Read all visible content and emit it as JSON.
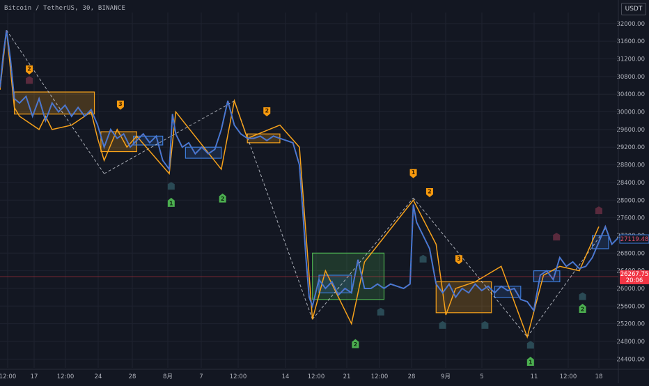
{
  "header": {
    "title": "Bitcoin / TetherUS, 30, BINANCE",
    "currency": "USDT"
  },
  "colors": {
    "background": "#131722",
    "grid": "#1f2330",
    "price_line": "#3d7bd8",
    "price_line_alt": "#e05070",
    "zigzag": "#f7a21b",
    "dashed": "#d0d3dc",
    "box_orange": "#f7a21b",
    "box_blue": "#3d7bd8",
    "box_green": "#4caf50",
    "marker_orange": "#f79a0e",
    "marker_green": "#4caf50",
    "marker_teal": "#2a4a55",
    "marker_maroon": "#5a2a3d",
    "current_price": "#f23645",
    "last_price": "#3d7bd8"
  },
  "chart_data": {
    "type": "line",
    "title": "Bitcoin / TetherUS, 30, BINANCE",
    "x_tick_labels": [
      "12:00",
      "17",
      "12:00",
      "24",
      "28",
      "8月",
      "7",
      "12:00",
      "14",
      "12:00",
      "21",
      "12:00",
      "28",
      "9月",
      "5",
      "11",
      "12:00",
      "18"
    ],
    "y_tick_labels": [
      "32000.00",
      "31600.00",
      "31200.00",
      "30800.00",
      "30400.00",
      "30000.00",
      "29600.00",
      "29200.00",
      "28800.00",
      "28400.00",
      "28000.00",
      "27600.00",
      "27200.00",
      "26800.00",
      "26400.00",
      "26000.00",
      "25600.00",
      "25200.00",
      "24800.00",
      "24400.00"
    ],
    "ylim": [
      24200,
      32250
    ],
    "series": [
      {
        "name": "",
        "points": [
          [
            0,
            30550
          ],
          [
            0.5,
            31300
          ],
          [
            1,
            31850
          ],
          [
            1.6,
            31200
          ],
          [
            2.2,
            30300
          ],
          [
            3,
            30200
          ],
          [
            4,
            30350
          ],
          [
            5,
            29900
          ],
          [
            6,
            30300
          ],
          [
            7,
            29800
          ],
          [
            8,
            30200
          ],
          [
            9,
            30000
          ],
          [
            10,
            30150
          ],
          [
            11,
            29900
          ],
          [
            12,
            30100
          ],
          [
            13,
            29900
          ],
          [
            14,
            30050
          ],
          [
            15,
            29700
          ],
          [
            16,
            29200
          ],
          [
            17,
            29600
          ],
          [
            18,
            29400
          ],
          [
            19,
            29500
          ],
          [
            20,
            29200
          ],
          [
            21,
            29350
          ],
          [
            22,
            29500
          ],
          [
            23,
            29300
          ],
          [
            24,
            29450
          ],
          [
            25,
            28900
          ],
          [
            26,
            28700
          ],
          [
            26.5,
            29950
          ],
          [
            27,
            29500
          ],
          [
            28,
            29200
          ],
          [
            29,
            29300
          ],
          [
            30,
            29050
          ],
          [
            31,
            29200
          ],
          [
            32,
            29050
          ],
          [
            33,
            29150
          ],
          [
            34,
            29600
          ],
          [
            35,
            30250
          ],
          [
            36,
            29700
          ],
          [
            37,
            29500
          ],
          [
            38,
            29400
          ],
          [
            39,
            29400
          ],
          [
            40,
            29450
          ],
          [
            41,
            29350
          ],
          [
            42,
            29450
          ],
          [
            43,
            29400
          ],
          [
            44,
            29350
          ],
          [
            45,
            29300
          ],
          [
            46,
            28800
          ],
          [
            46.5,
            27800
          ],
          [
            47,
            26700
          ],
          [
            47.5,
            25800
          ],
          [
            48,
            25600
          ],
          [
            49,
            26200
          ],
          [
            50,
            26000
          ],
          [
            51,
            26150
          ],
          [
            52,
            25850
          ],
          [
            53,
            26000
          ],
          [
            54,
            25900
          ],
          [
            55,
            26650
          ],
          [
            56,
            26000
          ],
          [
            57,
            26000
          ],
          [
            58,
            26100
          ],
          [
            59,
            26000
          ],
          [
            60,
            26100
          ],
          [
            61,
            26050
          ],
          [
            62,
            26000
          ],
          [
            63,
            26100
          ],
          [
            63.5,
            27900
          ],
          [
            64,
            27500
          ],
          [
            65,
            27200
          ],
          [
            66,
            26900
          ],
          [
            67,
            26100
          ],
          [
            68,
            25900
          ],
          [
            69,
            26100
          ],
          [
            70,
            25800
          ],
          [
            71,
            26000
          ],
          [
            72,
            25900
          ],
          [
            73,
            26100
          ],
          [
            74,
            25950
          ],
          [
            75,
            26050
          ],
          [
            76,
            25900
          ],
          [
            77,
            26050
          ],
          [
            78,
            25950
          ],
          [
            79,
            26000
          ],
          [
            80,
            25750
          ],
          [
            81,
            25700
          ],
          [
            82,
            25500
          ],
          [
            83,
            26300
          ],
          [
            84,
            26400
          ],
          [
            85,
            26200
          ],
          [
            86,
            26700
          ],
          [
            87,
            26500
          ],
          [
            88,
            26600
          ],
          [
            89,
            26450
          ],
          [
            90,
            26500
          ],
          [
            91,
            26700
          ],
          [
            92,
            27050
          ],
          [
            93,
            27400
          ],
          [
            94,
            27000
          ],
          [
            95,
            27150
          ]
        ]
      }
    ],
    "zigzag": [
      [
        0,
        30500
      ],
      [
        1,
        31850
      ],
      [
        2.2,
        30100
      ],
      [
        3,
        29900
      ],
      [
        6,
        29600
      ],
      [
        7,
        29900
      ],
      [
        8,
        29600
      ],
      [
        11,
        29700
      ],
      [
        14,
        30000
      ],
      [
        15,
        29400
      ],
      [
        16,
        28900
      ],
      [
        18,
        29600
      ],
      [
        19.5,
        29200
      ],
      [
        21,
        29450
      ],
      [
        26,
        28600
      ],
      [
        27,
        30000
      ],
      [
        34,
        28700
      ],
      [
        36,
        30250
      ],
      [
        38,
        29400
      ],
      [
        43,
        29700
      ],
      [
        46,
        29200
      ],
      [
        48,
        25300
      ],
      [
        50,
        26400
      ],
      [
        54,
        25200
      ],
      [
        56,
        26600
      ],
      [
        63.5,
        28000
      ],
      [
        67,
        27000
      ],
      [
        68.5,
        25400
      ],
      [
        70,
        26000
      ],
      [
        73,
        26150
      ],
      [
        77,
        26500
      ],
      [
        81,
        24900
      ],
      [
        83.5,
        26300
      ],
      [
        86,
        26500
      ],
      [
        89,
        26400
      ],
      [
        92,
        27400
      ]
    ],
    "dashed_lines": [
      [
        [
          1,
          31850
        ],
        [
          16,
          28600
        ]
      ],
      [
        [
          16,
          28600
        ],
        [
          36,
          30250
        ]
      ],
      [
        [
          36,
          30250
        ],
        [
          48,
          25300
        ]
      ],
      [
        [
          48,
          25300
        ],
        [
          63.5,
          28050
        ]
      ],
      [
        [
          63.5,
          28050
        ],
        [
          81,
          24900
        ]
      ],
      [
        [
          81,
          24900
        ],
        [
          93,
          27350
        ]
      ]
    ],
    "boxes": [
      {
        "type": "orange",
        "x": [
          2.2,
          14.5
        ],
        "y": [
          29950,
          30450
        ]
      },
      {
        "type": "orange",
        "x": [
          15.5,
          21
        ],
        "y": [
          29100,
          29550
        ]
      },
      {
        "type": "blue",
        "x": [
          20.5,
          25
        ],
        "y": [
          29250,
          29450
        ]
      },
      {
        "type": "blue",
        "x": [
          28.5,
          34
        ],
        "y": [
          28950,
          29200
        ]
      },
      {
        "type": "orange",
        "x": [
          38,
          43
        ],
        "y": [
          29300,
          29500
        ]
      },
      {
        "type": "green",
        "x": [
          48,
          59
        ],
        "y": [
          25750,
          26800
        ]
      },
      {
        "type": "blue",
        "x": [
          49,
          54
        ],
        "y": [
          25900,
          26300
        ]
      },
      {
        "type": "orange",
        "x": [
          67,
          75.5
        ],
        "y": [
          25450,
          26150
        ]
      },
      {
        "type": "blue",
        "x": [
          76,
          80
        ],
        "y": [
          25800,
          26050
        ]
      },
      {
        "type": "blue",
        "x": [
          82,
          86
        ],
        "y": [
          26150,
          26400
        ]
      },
      {
        "type": "blue",
        "x": [
          91,
          93.5
        ],
        "y": [
          26900,
          27200
        ]
      }
    ],
    "markers": [
      {
        "type": "orange",
        "label": "2",
        "x": 4.5,
        "y": 30950,
        "dir": "down"
      },
      {
        "type": "orange",
        "label": "3",
        "x": 18.5,
        "y": 30150,
        "dir": "down"
      },
      {
        "type": "orange",
        "label": "2",
        "x": 41,
        "y": 30000,
        "dir": "down"
      },
      {
        "type": "orange",
        "label": "1",
        "x": 63.5,
        "y": 28600,
        "dir": "down"
      },
      {
        "type": "orange",
        "label": "2",
        "x": 66,
        "y": 28170,
        "dir": "down"
      },
      {
        "type": "orange",
        "label": "3",
        "x": 70.5,
        "y": 26650,
        "dir": "down"
      },
      {
        "type": "green",
        "label": "1",
        "x": 26.3,
        "y": 27950,
        "dir": "up"
      },
      {
        "type": "green",
        "label": "2",
        "x": 34.2,
        "y": 28050,
        "dir": "up"
      },
      {
        "type": "green",
        "label": "2",
        "x": 54.6,
        "y": 24750,
        "dir": "up"
      },
      {
        "type": "green",
        "label": "1",
        "x": 81.5,
        "y": 24350,
        "dir": "up"
      },
      {
        "type": "green",
        "label": "2",
        "x": 89.5,
        "y": 25550,
        "dir": "up"
      },
      {
        "type": "maroon",
        "label": "",
        "x": 4.5,
        "y": 30700,
        "dir": "none"
      },
      {
        "type": "maroon",
        "label": "",
        "x": 85.5,
        "y": 27150,
        "dir": "none"
      },
      {
        "type": "maroon",
        "label": "",
        "x": 92,
        "y": 27750,
        "dir": "none"
      },
      {
        "type": "teal",
        "label": "",
        "x": 26.3,
        "y": 28300,
        "dir": "none"
      },
      {
        "type": "teal",
        "label": "",
        "x": 58.5,
        "y": 25450,
        "dir": "none"
      },
      {
        "type": "teal",
        "label": "",
        "x": 65,
        "y": 26650,
        "dir": "none"
      },
      {
        "type": "teal",
        "label": "",
        "x": 68,
        "y": 25150,
        "dir": "none"
      },
      {
        "type": "teal",
        "label": "",
        "x": 74.5,
        "y": 25150,
        "dir": "none"
      },
      {
        "type": "teal",
        "label": "",
        "x": 81.5,
        "y": 24700,
        "dir": "none"
      },
      {
        "type": "teal",
        "label": "",
        "x": 89.5,
        "y": 25800,
        "dir": "none"
      }
    ],
    "last_price": {
      "value": 27119.48,
      "label": "27119.48"
    },
    "current_price": {
      "value": 26267.75,
      "label": "26267.75",
      "countdown": "20:06"
    },
    "grid": true
  }
}
